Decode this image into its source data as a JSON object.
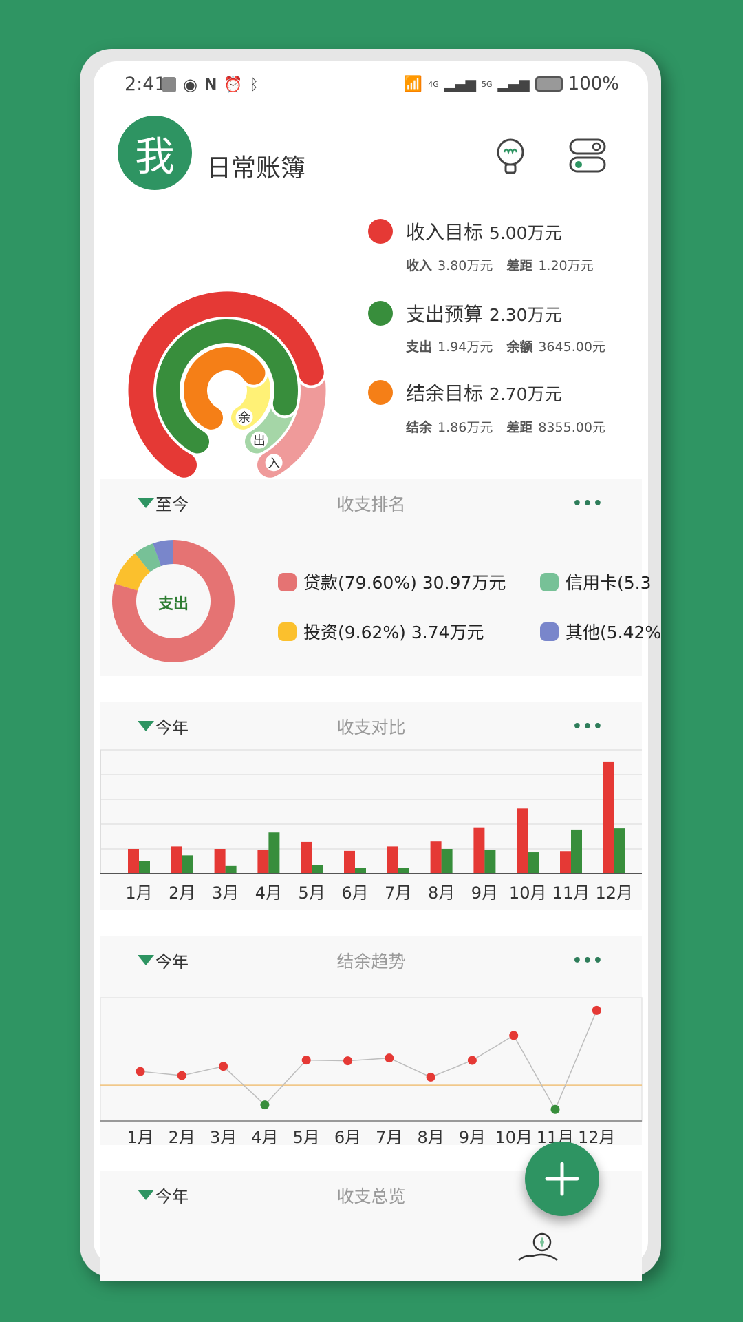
{
  "status_bar": {
    "time": "2:41",
    "battery": "100%",
    "network_1": "4G",
    "network_2": "5G"
  },
  "header": {
    "avatar_text": "我",
    "title": "日常账簿",
    "icons": [
      "lightbulb-icon",
      "toggle-switch-icon"
    ]
  },
  "colors": {
    "brand": "#2e9462",
    "income": "#e53935",
    "expense": "#388e3c",
    "balance": "#f57f17"
  },
  "goals": [
    {
      "title": "收入目标",
      "amount": "5.00万元",
      "sub1_label": "收入",
      "sub1_value": "3.80万元",
      "sub2_label": "差距",
      "sub2_value": "1.20万元",
      "ring_label": "入",
      "progress": 0.76,
      "color": "#e53935",
      "track": "#ef9a9a"
    },
    {
      "title": "支出预算",
      "amount": "2.30万元",
      "sub1_label": "支出",
      "sub1_value": "1.94万元",
      "sub2_label": "余额",
      "sub2_value": "3645.00元",
      "ring_label": "出",
      "progress": 0.843,
      "color": "#388e3c",
      "track": "#a5d6a7"
    },
    {
      "title": "结余目标",
      "amount": "2.70万元",
      "sub1_label": "结余",
      "sub1_value": "1.86万元",
      "sub2_label": "差距",
      "sub2_value": "8355.00元",
      "ring_label": "余",
      "progress": 0.689,
      "color": "#f57f17",
      "track": "#fff176"
    }
  ],
  "ranking": {
    "range": "至今",
    "title": "收支排名",
    "more": "•••",
    "center_label": "支出",
    "items": [
      {
        "label": "贷款(79.60%) 30.97万元",
        "value": 79.6,
        "color": "#e57373"
      },
      {
        "label": "投资(9.62%) 3.74万元",
        "value": 9.62,
        "color": "#fbc02d"
      },
      {
        "label": "信用卡(5.3",
        "value": 5.36,
        "color": "#77c197"
      },
      {
        "label": "其他(5.42%",
        "value": 5.42,
        "color": "#7986cb"
      }
    ]
  },
  "compare": {
    "range": "今年",
    "title": "收支对比",
    "more": "•••"
  },
  "trend": {
    "range": "今年",
    "title": "结余趋势",
    "more": "•••"
  },
  "overview": {
    "range": "今年",
    "title": "收支总览"
  },
  "chart_data": [
    {
      "type": "bar",
      "categories": [
        "1月",
        "2月",
        "3月",
        "4月",
        "5月",
        "6月",
        "7月",
        "8月",
        "9月",
        "10月",
        "11月",
        "12月"
      ],
      "series": [
        {
          "values": [
            1.0,
            1.1,
            1.0,
            0.97,
            1.28,
            0.92,
            1.1,
            1.3,
            1.87,
            2.63,
            0.91,
            4.53
          ],
          "color": "#e53935"
        },
        {
          "values": [
            0.5,
            0.74,
            0.31,
            1.66,
            0.36,
            0.24,
            0.24,
            1.0,
            0.97,
            0.86,
            1.78,
            1.83
          ],
          "color": "#388e3c"
        }
      ],
      "ylim": [
        0,
        5
      ],
      "grid": true
    },
    {
      "type": "line",
      "categories": [
        "1月",
        "2月",
        "3月",
        "4月",
        "5月",
        "6月",
        "7月",
        "8月",
        "9月",
        "10月",
        "11月",
        "12月"
      ],
      "values": [
        0.6,
        0.42,
        0.82,
        -0.85,
        1.09,
        1.06,
        1.18,
        0.35,
        1.08,
        2.16,
        -1.05,
        3.25
      ],
      "positive_color": "#e53935",
      "negative_color": "#388e3c",
      "line_color": "#bdbdbd",
      "zero_line_color": "#f0c27a",
      "ylim": [
        -1.55,
        3.8
      ]
    }
  ]
}
